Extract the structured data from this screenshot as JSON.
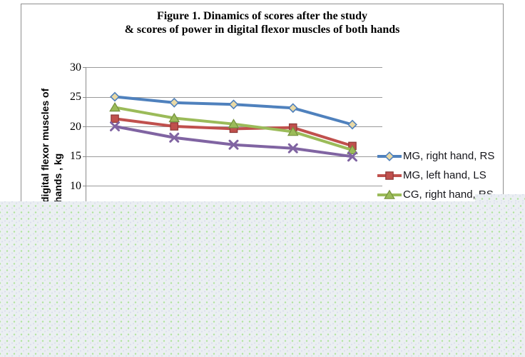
{
  "chart": {
    "title_line1": "Figure 1. Dinamics of scores after the study",
    "title_line2": "& scores of power in digital flexor muscles of both hands",
    "y_axis_title_line1": "digital flexor muscles of",
    "y_axis_title_line2": "hands , kg"
  },
  "ui_colors": {
    "chart_border": "#8f8f8f",
    "axis_line": "#8a8a8a",
    "gridline": "#9a9a9a",
    "title_text": "#000000",
    "legend_text": "#15151a",
    "overlay_base": "#ebeff2",
    "overlay_dot_green": "#aee39a",
    "overlay_dot_lavender": "#dadded"
  },
  "chart_data": {
    "type": "line",
    "title": "Figure 1. Dinamics of scores after the study & scores of power in digital flexor muscles of both hands",
    "ylabel": "digital flexor muscles of hands , kg",
    "xlabel": "",
    "x": [
      1,
      2,
      3,
      4,
      5
    ],
    "x_labels_visible": false,
    "ylim": [
      10,
      30
    ],
    "yticks": [
      30,
      25,
      20,
      15,
      10
    ],
    "grid": true,
    "legend_position": "right",
    "series": [
      {
        "name": "MG, right hand, RS",
        "legend_visible": true,
        "marker": "diamond",
        "color": "#4f81bd",
        "marker_fill": "#e9d9a5",
        "values": [
          25.0,
          24.0,
          23.7,
          23.1,
          20.3
        ]
      },
      {
        "name": "MG, left hand, LS",
        "legend_visible": true,
        "marker": "square",
        "color": "#c0504d",
        "marker_fill": "#c0504d",
        "values": [
          21.3,
          20.0,
          19.6,
          19.8,
          16.7
        ]
      },
      {
        "name": "CG, right hand, RS",
        "legend_visible": true,
        "marker": "triangle",
        "color": "#9bbb59",
        "marker_fill": "#9bbb59",
        "values": [
          23.2,
          21.4,
          20.4,
          19.1,
          16.0
        ]
      },
      {
        "name": "",
        "legend_visible": false,
        "marker": "x",
        "color": "#8064a2",
        "marker_fill": "#8064a2",
        "values": [
          20.0,
          18.1,
          16.9,
          16.3,
          14.9
        ]
      }
    ]
  }
}
